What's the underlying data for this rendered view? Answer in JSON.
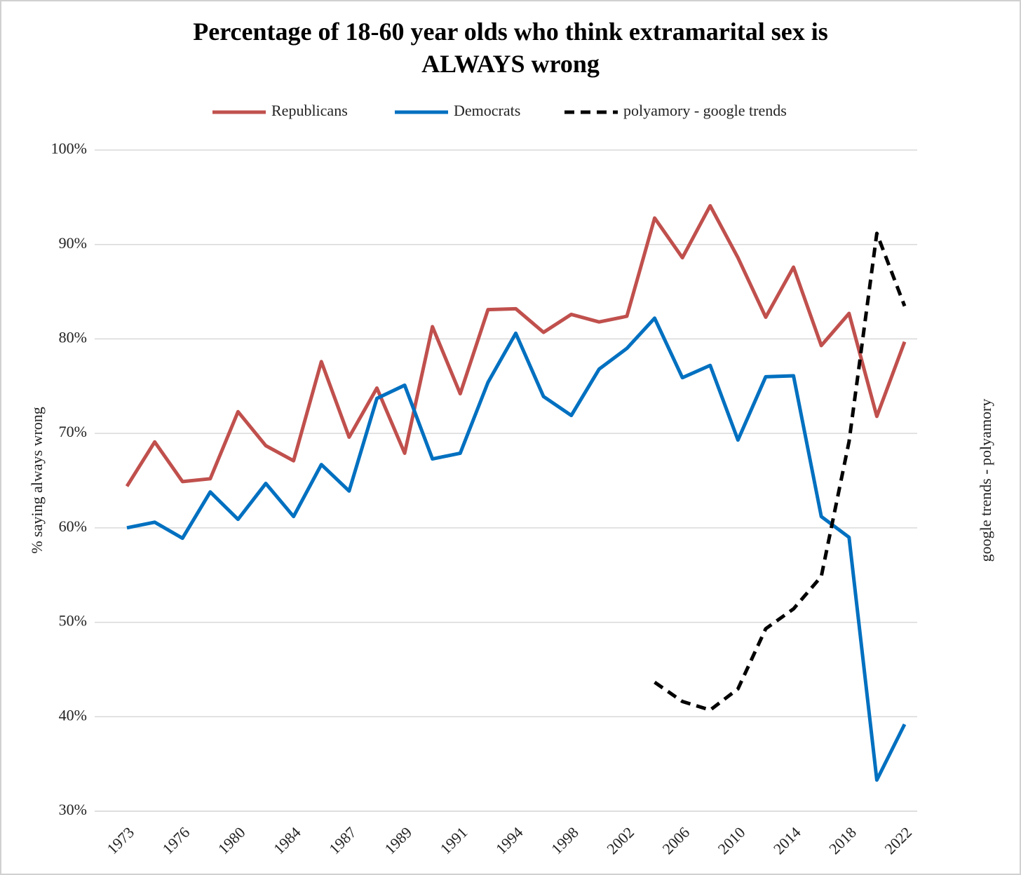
{
  "chart_data": {
    "type": "line",
    "title": "Percentage of 18-60 year olds who think extramarital sex is ALWAYS wrong",
    "y_label": "% saying always wrong",
    "y2_label": "google trends - polyamory",
    "categories": [
      "1973",
      null,
      "1976",
      null,
      "1980",
      null,
      "1984",
      null,
      "1987",
      null,
      "1989",
      null,
      "1991",
      null,
      "1994",
      null,
      "1998",
      null,
      "2002",
      null,
      "2006",
      null,
      "2010",
      null,
      "2014",
      null,
      "2018",
      null,
      "2022"
    ],
    "series": [
      {
        "name": "Republicans",
        "color": "#c0504d",
        "dash": false,
        "values": [
          64.4,
          69.1,
          64.9,
          65.2,
          72.3,
          68.7,
          67.1,
          77.6,
          69.6,
          74.8,
          67.9,
          81.3,
          74.2,
          83.1,
          83.2,
          80.7,
          82.6,
          81.8,
          82.4,
          92.8,
          88.6,
          94.1,
          88.6,
          82.3,
          87.6,
          79.3,
          82.7,
          71.8,
          79.7
        ]
      },
      {
        "name": "Democrats",
        "color": "#0070c0",
        "dash": false,
        "values": [
          60.0,
          60.6,
          58.9,
          63.8,
          60.9,
          64.7,
          61.2,
          66.7,
          63.9,
          73.7,
          75.1,
          67.3,
          67.9,
          75.4,
          80.6,
          73.9,
          71.9,
          76.8,
          79.0,
          82.2,
          75.9,
          77.2,
          69.3,
          76.0,
          76.1,
          61.2,
          59.0,
          33.3,
          39.2
        ]
      },
      {
        "name": "polyamory - google trends",
        "color": "#000000",
        "dash": true,
        "axis": "y2",
        "values": [
          null,
          null,
          null,
          null,
          null,
          null,
          null,
          null,
          null,
          null,
          null,
          null,
          null,
          null,
          null,
          null,
          null,
          null,
          null,
          19.5,
          16.6,
          15.3,
          18.5,
          27.6,
          30.6,
          35.5,
          55.9,
          87.4,
          76.4
        ]
      }
    ],
    "ylim": [
      30,
      100
    ],
    "yticks": [
      {
        "value": 30,
        "label": "30%"
      },
      {
        "value": 40,
        "label": "40%"
      },
      {
        "value": 50,
        "label": "50%"
      },
      {
        "value": 60,
        "label": "60%"
      },
      {
        "value": 70,
        "label": "70%"
      },
      {
        "value": 80,
        "label": "80%"
      },
      {
        "value": 90,
        "label": "90%"
      },
      {
        "value": 100,
        "label": "100%"
      }
    ],
    "y2lim": [
      0,
      100
    ],
    "grid": true,
    "legend": "top"
  }
}
